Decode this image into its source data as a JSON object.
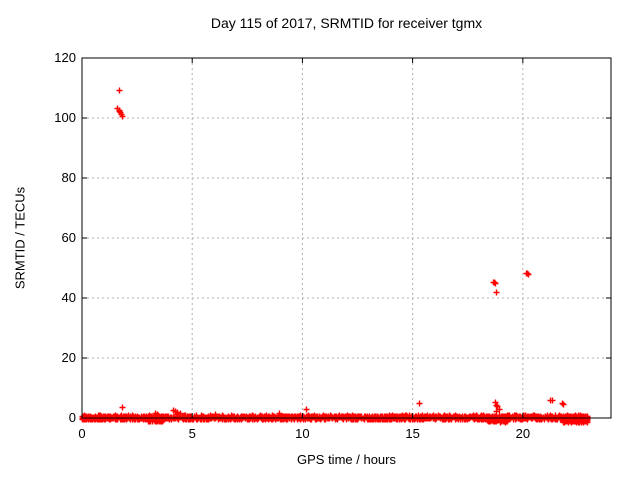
{
  "title": "Day 115 of 2017, SRMTID for receiver tgmx",
  "chart_data": {
    "type": "scatter",
    "marker": "plus",
    "title": "Day 115 of 2017, SRMTID for receiver tgmx",
    "xlabel": "GPS time / hours",
    "ylabel": "SRMTID / TECUs",
    "xlim": [
      0,
      24
    ],
    "ylim": [
      0,
      120
    ],
    "xticks": [
      0,
      5,
      10,
      15,
      20
    ],
    "yticks": [
      0,
      20,
      40,
      60,
      80,
      100,
      120
    ],
    "grid": true,
    "legend": "none",
    "colors": {
      "series": "#ff0000",
      "grid": "#b0b0b0",
      "axis": "#000000",
      "background": "#ffffff",
      "text": "#000000"
    },
    "points": [
      [
        1.68,
        109.2
      ],
      [
        1.6,
        103.2
      ],
      [
        1.66,
        102.7
      ],
      [
        1.71,
        102.1
      ],
      [
        1.76,
        101.4
      ],
      [
        1.8,
        100.8
      ],
      [
        1.68,
        102.4
      ],
      [
        18.66,
        45.4
      ],
      [
        18.73,
        44.9
      ],
      [
        18.7,
        45.2
      ],
      [
        18.77,
        41.9
      ],
      [
        20.16,
        48.4
      ],
      [
        20.23,
        48.0
      ],
      [
        20.19,
        48.3
      ],
      [
        1.82,
        3.8
      ],
      [
        3.3,
        1.6
      ],
      [
        3.42,
        1.3
      ],
      [
        4.12,
        2.7
      ],
      [
        4.22,
        2.3
      ],
      [
        4.33,
        1.9
      ],
      [
        4.45,
        1.6
      ],
      [
        4.28,
        1.2
      ],
      [
        6.05,
        1.3
      ],
      [
        8.95,
        1.8
      ],
      [
        10.15,
        3.0
      ],
      [
        15.28,
        5.1
      ],
      [
        18.72,
        5.3
      ],
      [
        18.8,
        4.5
      ],
      [
        18.85,
        3.9
      ],
      [
        18.9,
        3.1
      ],
      [
        18.76,
        2.3
      ],
      [
        21.25,
        6.1
      ],
      [
        21.34,
        5.9
      ],
      [
        21.76,
        4.9
      ],
      [
        21.83,
        4.8
      ]
    ],
    "baseline_band": {
      "description": "dense quasi-continuous band of plus markers hugging y=0 from 0 to ~22.9 h",
      "seed": 2017115,
      "main": {
        "x0": 0.0,
        "x1": 22.92,
        "y0": -0.35,
        "y1": 0.9,
        "n": 1600
      },
      "dense_regions": [
        {
          "x0": 3.0,
          "x1": 3.7,
          "y0": -1.1,
          "y1": 0.5,
          "n": 120
        },
        {
          "x0": 18.35,
          "x1": 19.3,
          "y0": -1.2,
          "y1": 0.6,
          "n": 160
        },
        {
          "x0": 21.8,
          "x1": 22.92,
          "y0": -1.3,
          "y1": 0.7,
          "n": 200
        },
        {
          "x0": 0.0,
          "x1": 1.0,
          "y0": -0.5,
          "y1": 0.6,
          "n": 80
        }
      ]
    }
  }
}
